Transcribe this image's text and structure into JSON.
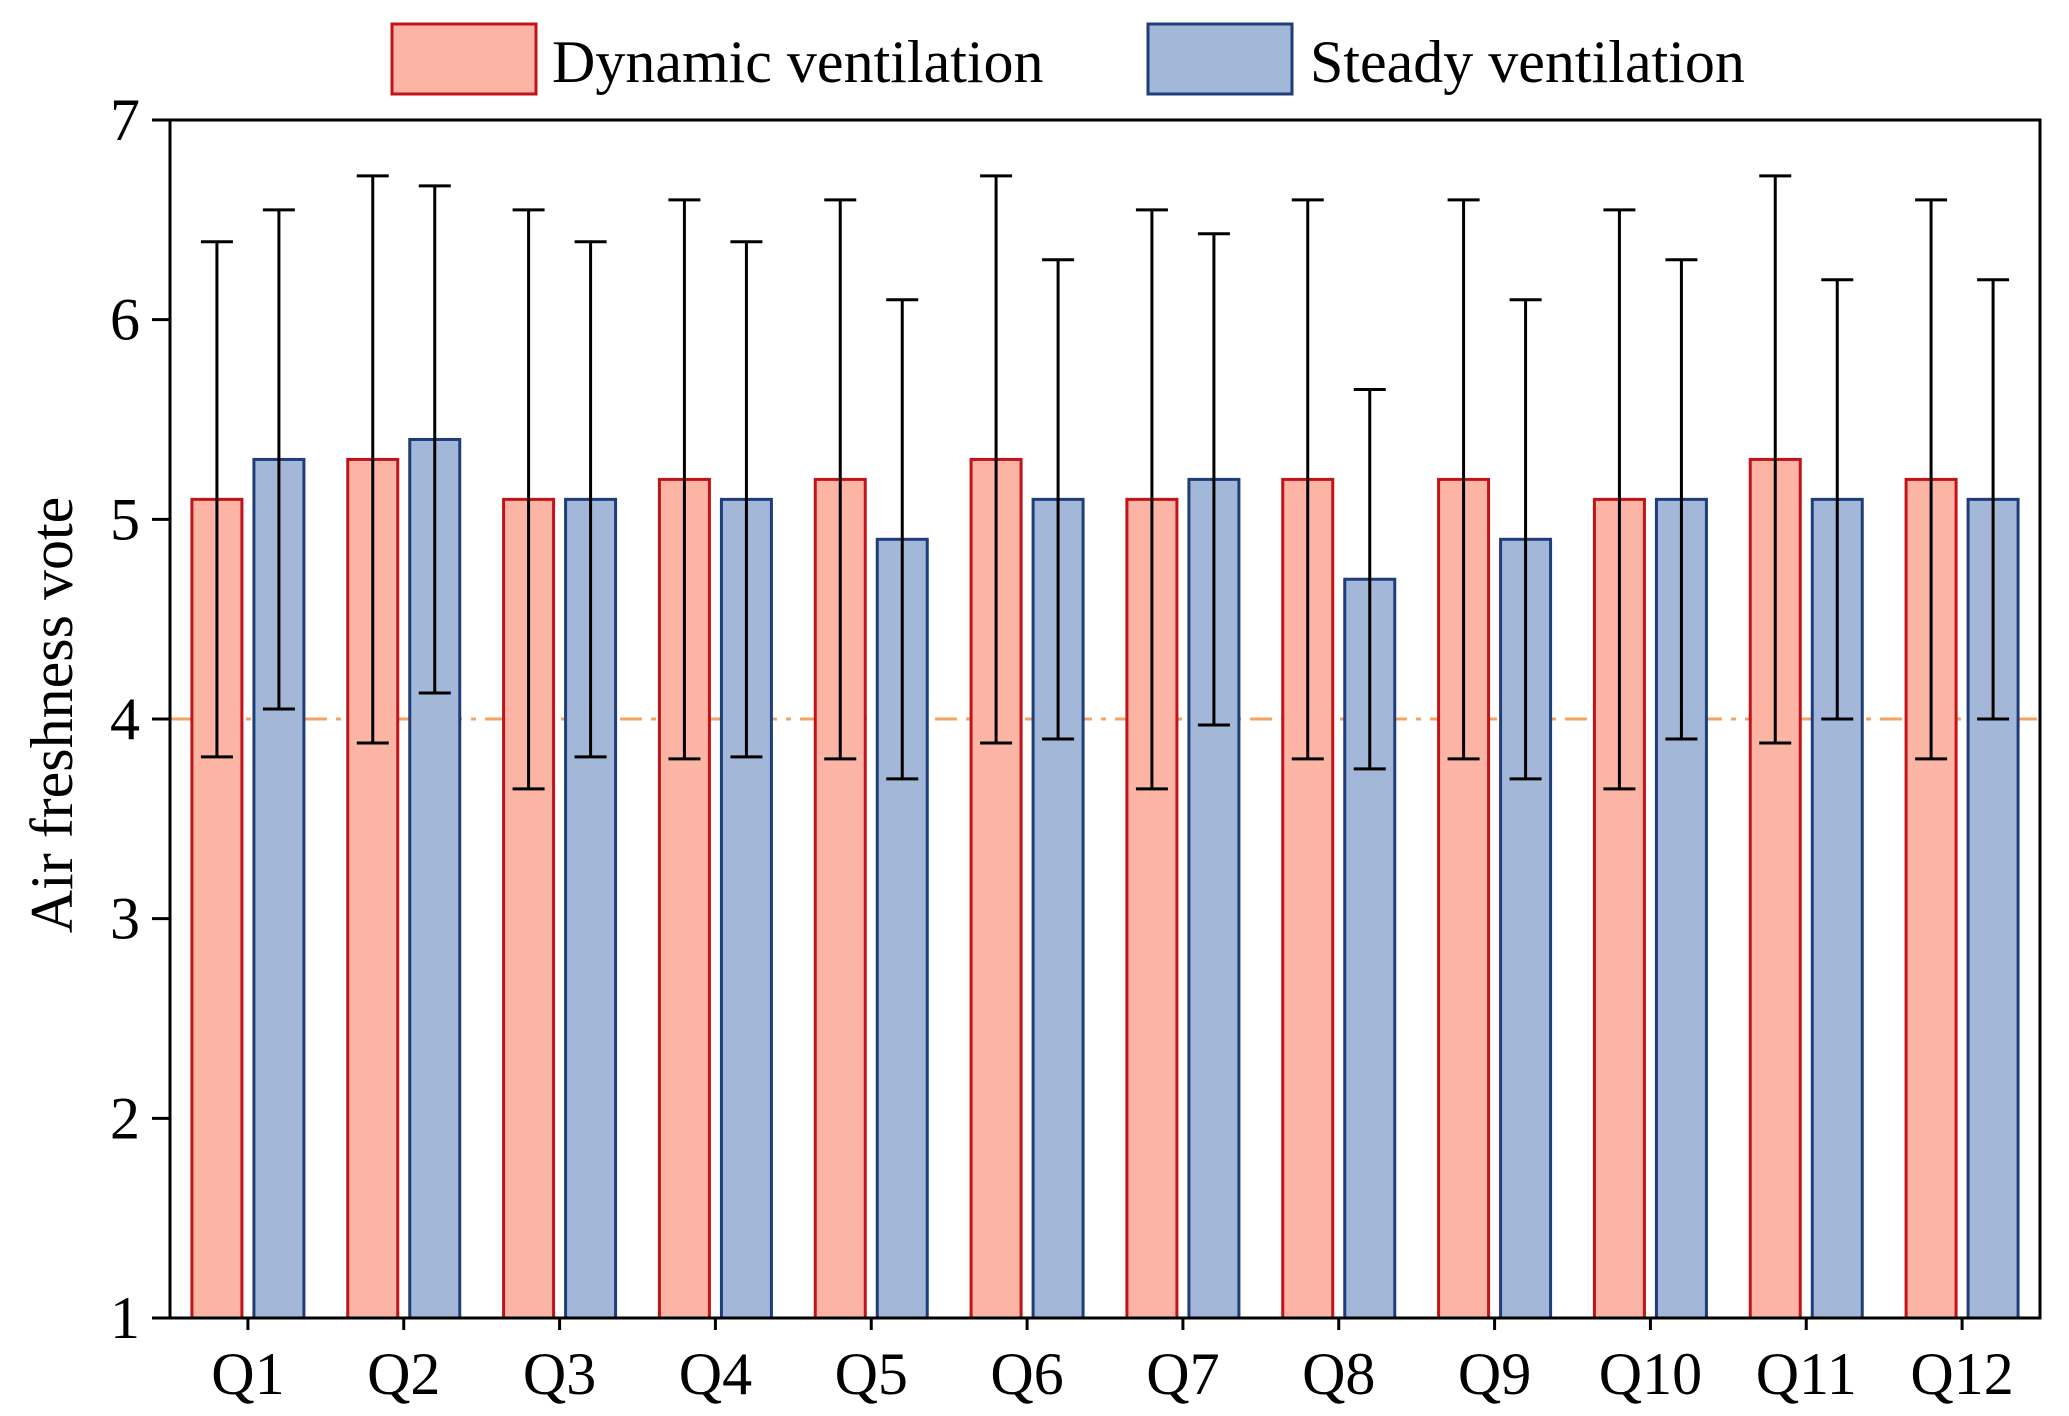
{
  "chart_data": {
    "type": "bar",
    "title": "",
    "xlabel": "",
    "ylabel": "Air freshness vote",
    "ylim": [
      1,
      7
    ],
    "yticks": [
      1,
      2,
      3,
      4,
      5,
      6,
      7
    ],
    "grid": false,
    "legend_position": "top-center",
    "categories": [
      "Q1",
      "Q2",
      "Q3",
      "Q4",
      "Q5",
      "Q6",
      "Q7",
      "Q8",
      "Q9",
      "Q10",
      "Q11",
      "Q12"
    ],
    "series": [
      {
        "name": "Dynamic ventilation",
        "fill": "#FCB4A4",
        "edge": "#C0141A",
        "values": [
          5.1,
          5.3,
          5.1,
          5.2,
          5.2,
          5.3,
          5.1,
          5.2,
          5.2,
          5.1,
          5.3,
          5.2
        ],
        "err_low": [
          3.81,
          3.88,
          3.65,
          3.8,
          3.8,
          3.88,
          3.65,
          3.8,
          3.8,
          3.65,
          3.88,
          3.8
        ],
        "err_high": [
          6.39,
          6.72,
          6.55,
          6.6,
          6.6,
          6.72,
          6.55,
          6.6,
          6.6,
          6.55,
          6.72,
          6.6
        ]
      },
      {
        "name": "Steady ventilation",
        "fill": "#A3B8D8",
        "edge": "#1F3D7A",
        "values": [
          5.3,
          5.4,
          5.1,
          5.1,
          4.9,
          5.1,
          5.2,
          4.7,
          4.9,
          5.1,
          5.1,
          5.1
        ],
        "err_low": [
          4.05,
          4.13,
          3.81,
          3.81,
          3.7,
          3.9,
          3.97,
          3.75,
          3.7,
          3.9,
          4.0,
          4.0
        ],
        "err_high": [
          6.55,
          6.67,
          6.39,
          6.39,
          6.1,
          6.3,
          6.43,
          5.65,
          6.1,
          6.3,
          6.2,
          6.2
        ]
      }
    ],
    "reference_line": {
      "y": 4,
      "color": "#F4A460",
      "style": "dash-dot"
    }
  }
}
